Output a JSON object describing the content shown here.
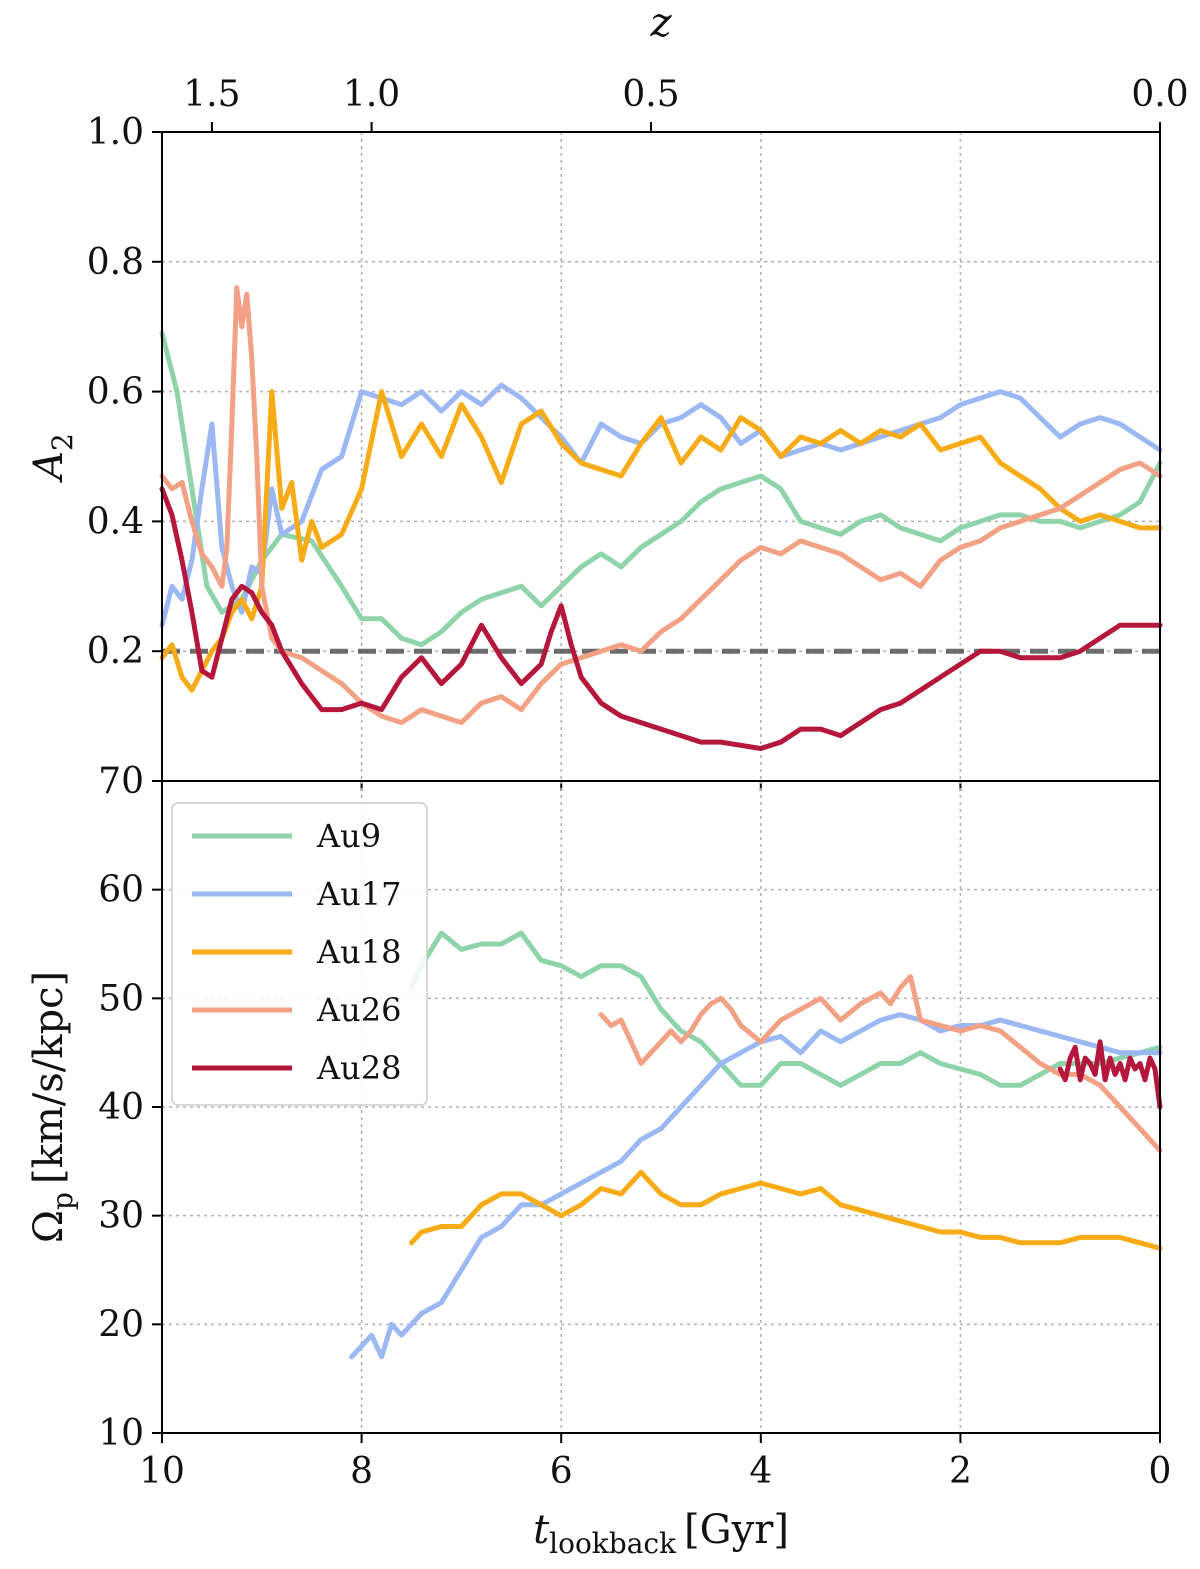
{
  "chart_data": [
    {
      "type": "line",
      "panel": "top",
      "title": "",
      "top_axis": {
        "label": "z",
        "ticks": [
          {
            "label": "1.5",
            "x": 9.5
          },
          {
            "label": "1.0",
            "x": 7.9
          },
          {
            "label": "0.5",
            "x": 5.1
          },
          {
            "label": "0.0",
            "x": 0
          }
        ]
      },
      "xlabel": "",
      "ylabel": "A",
      "ylabel_sub": "2",
      "xlim": [
        10,
        0
      ],
      "ylim": [
        0.0,
        1.0
      ],
      "yticks": [
        0.2,
        0.4,
        0.6,
        0.8,
        1.0
      ],
      "ytick_labels": [
        "0.2",
        "0.4",
        "0.6",
        "0.8",
        "1.0"
      ],
      "xticks": [
        10,
        8,
        6,
        4,
        2,
        0
      ],
      "reference_line": {
        "y": 0.2,
        "style": "dashed",
        "color": "#555555"
      },
      "series": [
        {
          "name": "Au9",
          "color": "#8fd3aa",
          "x": [
            10,
            9.85,
            9.7,
            9.55,
            9.4,
            9.2,
            9.0,
            8.8,
            8.5,
            8.2,
            8.0,
            7.8,
            7.6,
            7.4,
            7.2,
            7.0,
            6.8,
            6.6,
            6.4,
            6.2,
            6.0,
            5.8,
            5.6,
            5.4,
            5.2,
            5.0,
            4.8,
            4.6,
            4.4,
            4.2,
            4.0,
            3.8,
            3.6,
            3.4,
            3.2,
            3.0,
            2.8,
            2.6,
            2.4,
            2.2,
            2.0,
            1.8,
            1.6,
            1.4,
            1.2,
            1.0,
            0.8,
            0.6,
            0.4,
            0.2,
            0.0
          ],
          "y": [
            0.69,
            0.6,
            0.45,
            0.3,
            0.26,
            0.28,
            0.34,
            0.38,
            0.37,
            0.3,
            0.25,
            0.25,
            0.22,
            0.21,
            0.23,
            0.26,
            0.28,
            0.29,
            0.3,
            0.27,
            0.3,
            0.33,
            0.35,
            0.33,
            0.36,
            0.38,
            0.4,
            0.43,
            0.45,
            0.46,
            0.47,
            0.45,
            0.4,
            0.39,
            0.38,
            0.4,
            0.41,
            0.39,
            0.38,
            0.37,
            0.39,
            0.4,
            0.41,
            0.41,
            0.4,
            0.4,
            0.39,
            0.4,
            0.41,
            0.43,
            0.49
          ]
        },
        {
          "name": "Au17",
          "color": "#9bb8f2",
          "x": [
            10,
            9.9,
            9.8,
            9.7,
            9.6,
            9.5,
            9.4,
            9.3,
            9.2,
            9.1,
            9.0,
            8.9,
            8.8,
            8.6,
            8.4,
            8.2,
            8.0,
            7.8,
            7.6,
            7.4,
            7.2,
            7.0,
            6.8,
            6.6,
            6.4,
            6.2,
            6.0,
            5.8,
            5.6,
            5.4,
            5.2,
            5.0,
            4.8,
            4.6,
            4.4,
            4.2,
            4.0,
            3.8,
            3.6,
            3.4,
            3.2,
            3.0,
            2.8,
            2.6,
            2.4,
            2.2,
            2.0,
            1.8,
            1.6,
            1.4,
            1.2,
            1.0,
            0.8,
            0.6,
            0.4,
            0.2,
            0.0
          ],
          "y": [
            0.24,
            0.3,
            0.28,
            0.34,
            0.45,
            0.55,
            0.36,
            0.3,
            0.26,
            0.33,
            0.32,
            0.45,
            0.38,
            0.4,
            0.48,
            0.5,
            0.6,
            0.59,
            0.58,
            0.6,
            0.57,
            0.6,
            0.58,
            0.61,
            0.59,
            0.56,
            0.53,
            0.49,
            0.55,
            0.53,
            0.52,
            0.55,
            0.56,
            0.58,
            0.56,
            0.52,
            0.54,
            0.5,
            0.51,
            0.52,
            0.51,
            0.52,
            0.53,
            0.54,
            0.55,
            0.56,
            0.58,
            0.59,
            0.6,
            0.59,
            0.56,
            0.53,
            0.55,
            0.56,
            0.55,
            0.53,
            0.51
          ]
        },
        {
          "name": "Au18",
          "color": "#f7ab16",
          "x": [
            10,
            9.9,
            9.8,
            9.7,
            9.6,
            9.5,
            9.4,
            9.3,
            9.2,
            9.1,
            9.0,
            8.95,
            8.9,
            8.8,
            8.7,
            8.6,
            8.5,
            8.4,
            8.2,
            8.0,
            7.8,
            7.6,
            7.4,
            7.2,
            7.0,
            6.8,
            6.6,
            6.4,
            6.2,
            6.0,
            5.8,
            5.6,
            5.4,
            5.2,
            5.0,
            4.8,
            4.6,
            4.4,
            4.2,
            4.0,
            3.8,
            3.6,
            3.4,
            3.2,
            3.0,
            2.8,
            2.6,
            2.4,
            2.2,
            2.0,
            1.8,
            1.6,
            1.4,
            1.2,
            1.0,
            0.8,
            0.6,
            0.4,
            0.2,
            0.0
          ],
          "y": [
            0.19,
            0.21,
            0.16,
            0.14,
            0.17,
            0.2,
            0.22,
            0.26,
            0.28,
            0.25,
            0.3,
            0.45,
            0.6,
            0.42,
            0.46,
            0.34,
            0.4,
            0.36,
            0.38,
            0.45,
            0.6,
            0.5,
            0.55,
            0.5,
            0.58,
            0.53,
            0.46,
            0.55,
            0.57,
            0.52,
            0.49,
            0.48,
            0.47,
            0.52,
            0.56,
            0.49,
            0.53,
            0.51,
            0.56,
            0.54,
            0.5,
            0.53,
            0.52,
            0.54,
            0.52,
            0.54,
            0.53,
            0.55,
            0.51,
            0.52,
            0.53,
            0.49,
            0.47,
            0.45,
            0.42,
            0.4,
            0.41,
            0.4,
            0.39,
            0.39
          ]
        },
        {
          "name": "Au26",
          "color": "#f2a185",
          "x": [
            10,
            9.9,
            9.8,
            9.7,
            9.6,
            9.5,
            9.4,
            9.35,
            9.3,
            9.25,
            9.2,
            9.15,
            9.1,
            9.05,
            9.0,
            8.9,
            8.8,
            8.6,
            8.4,
            8.2,
            8.0,
            7.8,
            7.6,
            7.4,
            7.2,
            7.0,
            6.8,
            6.6,
            6.4,
            6.2,
            6.0,
            5.8,
            5.6,
            5.4,
            5.2,
            5.0,
            4.8,
            4.6,
            4.4,
            4.2,
            4.0,
            3.8,
            3.6,
            3.4,
            3.2,
            3.0,
            2.8,
            2.6,
            2.4,
            2.2,
            2.0,
            1.8,
            1.6,
            1.4,
            1.2,
            1.0,
            0.8,
            0.6,
            0.4,
            0.2,
            0.0
          ],
          "y": [
            0.47,
            0.45,
            0.46,
            0.4,
            0.35,
            0.33,
            0.3,
            0.36,
            0.55,
            0.76,
            0.7,
            0.75,
            0.65,
            0.5,
            0.3,
            0.22,
            0.2,
            0.19,
            0.17,
            0.15,
            0.12,
            0.1,
            0.09,
            0.11,
            0.1,
            0.09,
            0.12,
            0.13,
            0.11,
            0.15,
            0.18,
            0.19,
            0.2,
            0.21,
            0.2,
            0.23,
            0.25,
            0.28,
            0.31,
            0.34,
            0.36,
            0.35,
            0.37,
            0.36,
            0.35,
            0.33,
            0.31,
            0.32,
            0.3,
            0.34,
            0.36,
            0.37,
            0.39,
            0.4,
            0.41,
            0.42,
            0.44,
            0.46,
            0.48,
            0.49,
            0.47
          ]
        },
        {
          "name": "Au28",
          "color": "#b5173c",
          "x": [
            10,
            9.9,
            9.8,
            9.7,
            9.6,
            9.5,
            9.4,
            9.3,
            9.2,
            9.1,
            9.0,
            8.9,
            8.8,
            8.6,
            8.4,
            8.2,
            8.0,
            7.8,
            7.6,
            7.4,
            7.2,
            7.0,
            6.8,
            6.6,
            6.4,
            6.2,
            6.1,
            6.0,
            5.9,
            5.8,
            5.6,
            5.4,
            5.2,
            5.0,
            4.8,
            4.6,
            4.4,
            4.2,
            4.0,
            3.8,
            3.6,
            3.4,
            3.2,
            3.0,
            2.8,
            2.6,
            2.4,
            2.2,
            2.0,
            1.8,
            1.6,
            1.4,
            1.2,
            1.0,
            0.8,
            0.6,
            0.4,
            0.2,
            0.0
          ],
          "y": [
            0.45,
            0.41,
            0.34,
            0.26,
            0.17,
            0.16,
            0.22,
            0.28,
            0.3,
            0.29,
            0.26,
            0.24,
            0.2,
            0.15,
            0.11,
            0.11,
            0.12,
            0.11,
            0.16,
            0.19,
            0.15,
            0.18,
            0.24,
            0.19,
            0.15,
            0.18,
            0.23,
            0.27,
            0.21,
            0.16,
            0.12,
            0.1,
            0.09,
            0.08,
            0.07,
            0.06,
            0.06,
            0.055,
            0.05,
            0.06,
            0.08,
            0.08,
            0.07,
            0.09,
            0.11,
            0.12,
            0.14,
            0.16,
            0.18,
            0.2,
            0.2,
            0.19,
            0.19,
            0.19,
            0.2,
            0.22,
            0.24,
            0.24,
            0.24
          ]
        }
      ]
    },
    {
      "type": "line",
      "panel": "bottom",
      "title": "",
      "xlabel": "t",
      "xlabel_sub": "lookback",
      "xlabel_unit": "[Gyr]",
      "ylabel": "Ω",
      "ylabel_sub": "p",
      "ylabel_unit": "[km/s/kpc]",
      "xlim": [
        10,
        0
      ],
      "ylim": [
        10,
        70
      ],
      "yticks": [
        10,
        20,
        30,
        40,
        50,
        60,
        70
      ],
      "ytick_labels": [
        "10",
        "20",
        "30",
        "40",
        "50",
        "60",
        "70"
      ],
      "xticks": [
        10,
        8,
        6,
        4,
        2,
        0
      ],
      "xtick_labels": [
        "10",
        "8",
        "6",
        "4",
        "2",
        "0"
      ],
      "legend": {
        "placement": "top-left",
        "entries": [
          "Au9",
          "Au17",
          "Au18",
          "Au26",
          "Au28"
        ]
      },
      "series": [
        {
          "name": "Au9",
          "color": "#8fd3aa",
          "x": [
            7.5,
            7.4,
            7.2,
            7.0,
            6.8,
            6.6,
            6.4,
            6.2,
            6.0,
            5.8,
            5.6,
            5.4,
            5.2,
            5.0,
            4.8,
            4.6,
            4.4,
            4.2,
            4.0,
            3.8,
            3.6,
            3.4,
            3.2,
            3.0,
            2.8,
            2.6,
            2.4,
            2.2,
            2.0,
            1.8,
            1.6,
            1.4,
            1.2,
            1.0,
            0.8,
            0.6,
            0.4,
            0.2,
            0.0
          ],
          "y": [
            51,
            53,
            56,
            54.5,
            55,
            55,
            56,
            53.5,
            53,
            52,
            53,
            53,
            52,
            49,
            47,
            46,
            44,
            42,
            42,
            44,
            44,
            43,
            42,
            43,
            44,
            44,
            45,
            44,
            43.5,
            43,
            42,
            42,
            43,
            44,
            44,
            44,
            44.5,
            45,
            45.5
          ]
        },
        {
          "name": "Au17",
          "color": "#9bb8f2",
          "x": [
            8.1,
            8.0,
            7.9,
            7.8,
            7.7,
            7.6,
            7.4,
            7.2,
            7.0,
            6.8,
            6.6,
            6.4,
            6.2,
            6.0,
            5.8,
            5.6,
            5.4,
            5.2,
            5.0,
            4.8,
            4.6,
            4.4,
            4.2,
            4.0,
            3.8,
            3.6,
            3.4,
            3.2,
            3.0,
            2.8,
            2.6,
            2.4,
            2.2,
            2.0,
            1.8,
            1.6,
            1.4,
            1.2,
            1.0,
            0.8,
            0.6,
            0.4,
            0.2,
            0.0
          ],
          "y": [
            17,
            18,
            19,
            17,
            20,
            19,
            21,
            22,
            25,
            28,
            29,
            31,
            31,
            32,
            33,
            34,
            35,
            37,
            38,
            40,
            42,
            44,
            45,
            46,
            46.5,
            45,
            47,
            46,
            47,
            48,
            48.5,
            48,
            47,
            47.5,
            47.5,
            48,
            47.5,
            47,
            46.5,
            46,
            45.5,
            45,
            45,
            45
          ]
        },
        {
          "name": "Au18",
          "color": "#f7ab16",
          "x": [
            7.5,
            7.4,
            7.2,
            7.0,
            6.8,
            6.6,
            6.4,
            6.2,
            6.0,
            5.8,
            5.6,
            5.4,
            5.2,
            5.0,
            4.8,
            4.6,
            4.4,
            4.2,
            4.0,
            3.8,
            3.6,
            3.4,
            3.2,
            3.0,
            2.8,
            2.6,
            2.4,
            2.2,
            2.0,
            1.8,
            1.6,
            1.4,
            1.2,
            1.0,
            0.8,
            0.6,
            0.4,
            0.2,
            0.0
          ],
          "y": [
            27.5,
            28.5,
            29,
            29,
            31,
            32,
            32,
            31,
            30,
            31,
            32.5,
            32,
            34,
            32,
            31,
            31,
            32,
            32.5,
            33,
            32.5,
            32,
            32.5,
            31,
            30.5,
            30,
            29.5,
            29,
            28.5,
            28.5,
            28,
            28,
            27.5,
            27.5,
            27.5,
            28,
            28,
            28,
            27.5,
            27
          ]
        },
        {
          "name": "Au26",
          "color": "#f2a185",
          "x": [
            5.6,
            5.5,
            5.4,
            5.3,
            5.2,
            5.1,
            5.0,
            4.9,
            4.8,
            4.7,
            4.6,
            4.5,
            4.4,
            4.3,
            4.2,
            4.0,
            3.8,
            3.6,
            3.4,
            3.2,
            3.0,
            2.8,
            2.7,
            2.6,
            2.5,
            2.4,
            2.2,
            2.0,
            1.8,
            1.6,
            1.4,
            1.2,
            1.0,
            0.8,
            0.6,
            0.4,
            0.2,
            0.0
          ],
          "y": [
            48.5,
            47.5,
            48,
            46,
            44,
            45,
            46,
            47,
            46,
            47,
            48.5,
            49.5,
            50,
            49,
            47.5,
            46,
            48,
            49,
            50,
            48,
            49.5,
            50.5,
            49.5,
            51,
            52,
            48,
            47.5,
            47,
            47.5,
            47,
            45.5,
            44,
            43,
            43,
            42,
            40,
            38,
            36
          ]
        },
        {
          "name": "Au28",
          "color": "#b5173c",
          "x": [
            1.0,
            0.95,
            0.9,
            0.85,
            0.8,
            0.75,
            0.7,
            0.65,
            0.6,
            0.55,
            0.5,
            0.45,
            0.4,
            0.35,
            0.3,
            0.25,
            0.2,
            0.15,
            0.1,
            0.05,
            0.0
          ],
          "y": [
            43.5,
            42.5,
            44.5,
            45.5,
            42.5,
            44.5,
            44,
            43,
            46,
            42.5,
            44.5,
            43,
            44,
            42.5,
            44.5,
            43.5,
            44,
            42.5,
            44.5,
            43.5,
            40
          ]
        }
      ]
    }
  ]
}
